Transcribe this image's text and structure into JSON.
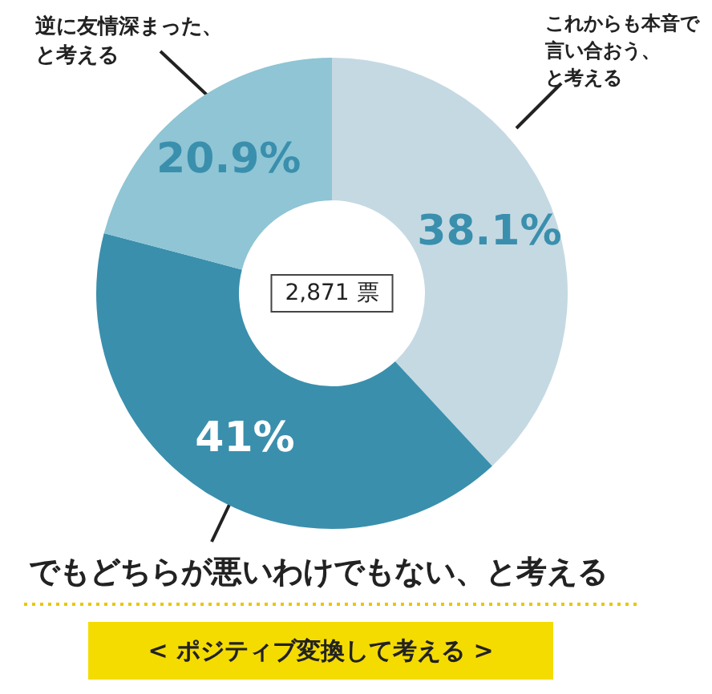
{
  "chart_data": {
    "type": "donut",
    "categories": [
      "これからも本音で言い合おう、と考える",
      "でもどちらが悪いわけでもない、と考える",
      "逆に友情深まった、と考える"
    ],
    "values": [
      38.1,
      41,
      20.9
    ],
    "value_labels": [
      "38.1%",
      "41%",
      "20.9%"
    ],
    "colors": [
      "#c5d9e3",
      "#3a8fad",
      "#8fc5d4"
    ],
    "legend": false,
    "annotations": [
      "2,871 票",
      "< ポジティブ変換して考える >"
    ]
  }
}
